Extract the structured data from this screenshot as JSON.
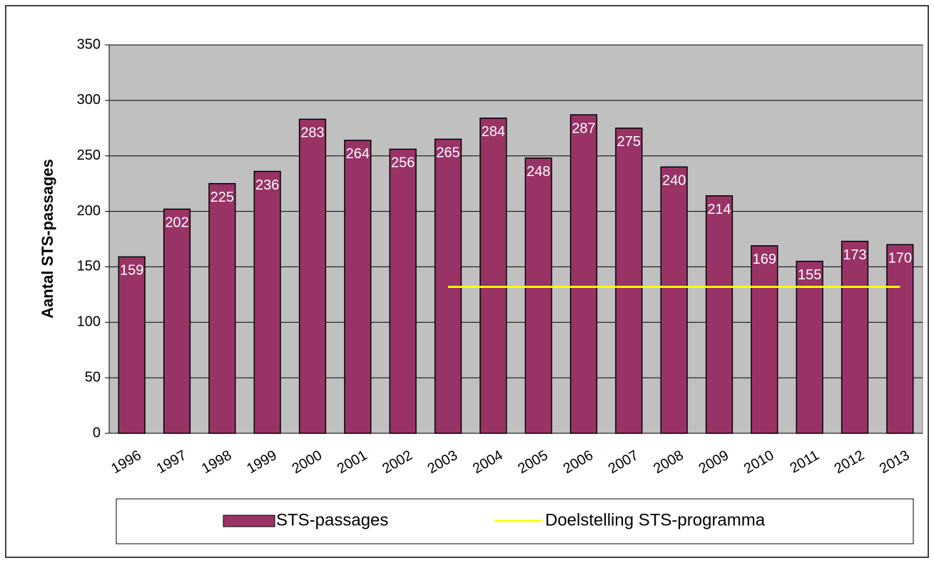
{
  "chart_data": {
    "type": "bar",
    "categories": [
      "1996",
      "1997",
      "1998",
      "1999",
      "2000",
      "2001",
      "2002",
      "2003",
      "2004",
      "2005",
      "2006",
      "2007",
      "2008",
      "2009",
      "2010",
      "2011",
      "2012",
      "2013"
    ],
    "ylabel": "Aantal STS-passages",
    "series": [
      {
        "name": "STS-passages",
        "type": "bar",
        "color": "#993366",
        "values": [
          159,
          202,
          225,
          236,
          283,
          264,
          256,
          265,
          284,
          248,
          287,
          275,
          240,
          214,
          169,
          155,
          173,
          170
        ]
      },
      {
        "name": "Doelstelling STS-programma",
        "type": "line",
        "color": "#ffff00",
        "values": [
          null,
          null,
          null,
          null,
          null,
          null,
          null,
          132,
          132,
          132,
          132,
          132,
          132,
          132,
          132,
          132,
          132,
          132
        ]
      }
    ],
    "ylim": [
      0,
      350
    ],
    "yticks": [
      0,
      50,
      100,
      150,
      200,
      250,
      300,
      350
    ],
    "grid": true,
    "legend": "bottom"
  }
}
